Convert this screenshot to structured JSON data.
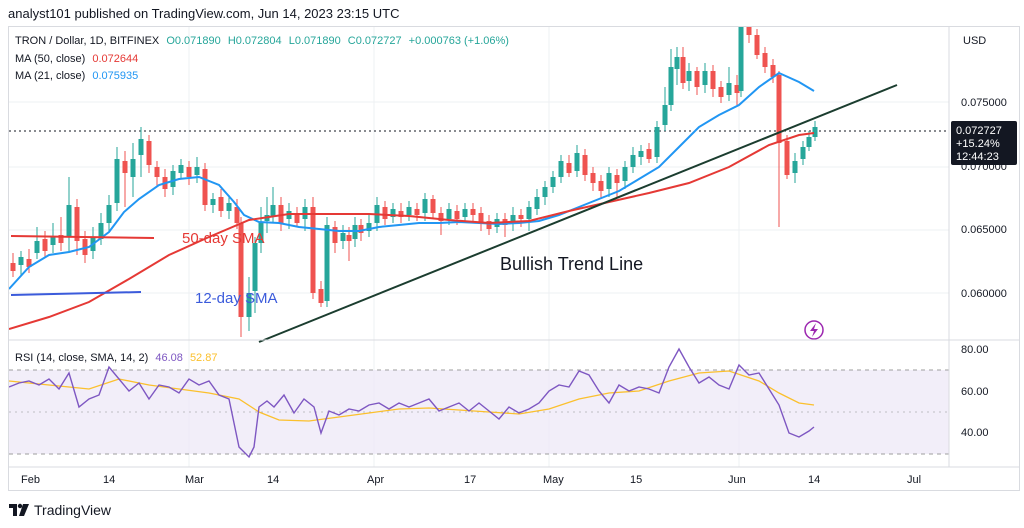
{
  "header": {
    "published": "analyst101 published on TradingView.com, Jun 14, 2023 23:15 UTC"
  },
  "symbol_line": {
    "name": "TRON / Dollar, 1D, BITFINEX",
    "open": "O0.071890",
    "high": "H0.072804",
    "low": "L0.071890",
    "close": "C0.072727",
    "change": "+0.000763 (+1.06%)"
  },
  "ma50": {
    "label": "MA (50, close)",
    "value": "0.072644",
    "color": "#e53935"
  },
  "ma21": {
    "label": "MA (21, close)",
    "value": "0.075935",
    "color": "#2196f3"
  },
  "rsi": {
    "label": "RSI (14, close, SMA, 14, 2)",
    "value": "46.08",
    "sma": "52.87",
    "color": "#7e57c2",
    "sma_color": "#fbc02d"
  },
  "price_axis": {
    "currency": "USD",
    "ticks": [
      "0.075000",
      "0.070000",
      "0.065000",
      "0.060000"
    ]
  },
  "price_badge": {
    "price": "0.072727",
    "change": "+15.24%",
    "countdown": "12:44:23",
    "color": "#131722"
  },
  "rsi_axis": {
    "ticks": [
      "80.00",
      "60.00",
      "40.00"
    ]
  },
  "time_axis": {
    "ticks": [
      "Feb",
      "14",
      "Mar",
      "14",
      "Apr",
      "17",
      "May",
      "15",
      "Jun",
      "14",
      "Jul"
    ]
  },
  "annotations": {
    "trend_line": "Bullish Trend Line",
    "sma50": "50-day SMA",
    "sma12": "12-day SMA"
  },
  "footer": {
    "brand": "TradingView"
  },
  "colors": {
    "bull": "#26a69a",
    "bear": "#ef5350",
    "trend": "#1b3d2f"
  }
}
